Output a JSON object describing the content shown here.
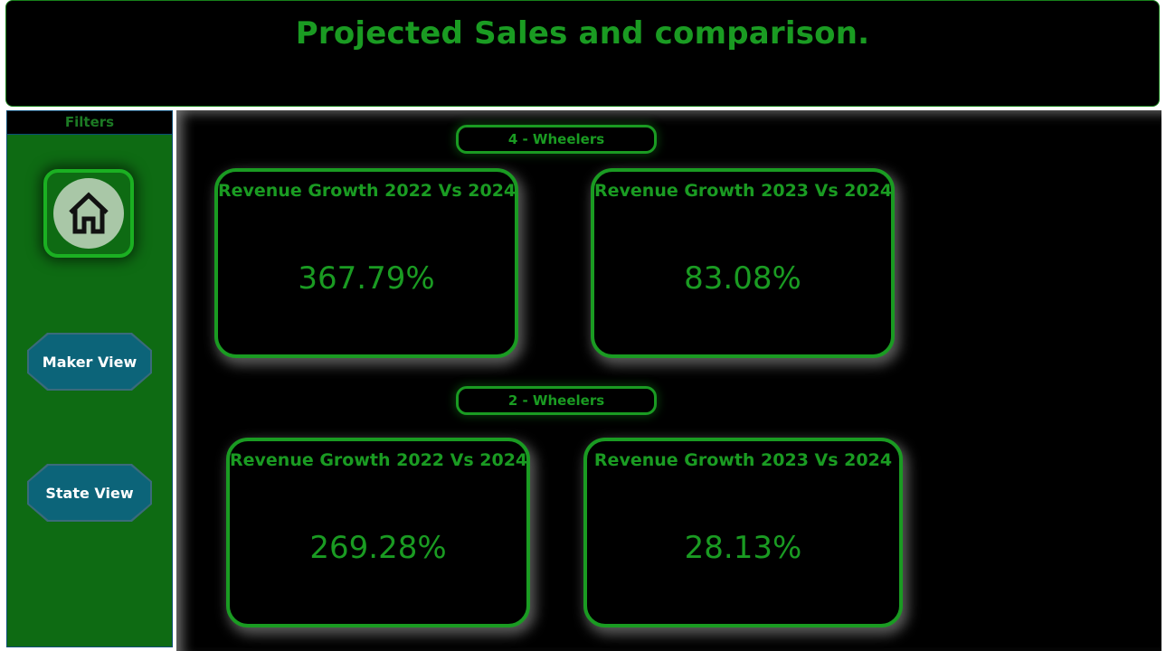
{
  "header": {
    "title": "Projected Sales and comparison."
  },
  "sidebar": {
    "title": "Filters",
    "home_icon": "home-icon",
    "buttons": [
      {
        "label": "Maker View"
      },
      {
        "label": "State View"
      }
    ]
  },
  "sections": [
    {
      "label": "4 - Wheelers",
      "cards": [
        {
          "title": "Revenue Growth 2022 Vs 2024",
          "value": "367.79%"
        },
        {
          "title": "Revenue Growth 2023 Vs 2024",
          "value": "83.08%"
        }
      ]
    },
    {
      "label": "2 - Wheelers",
      "cards": [
        {
          "title": "Revenue Growth 2022 Vs 2024",
          "value": "269.28%"
        },
        {
          "title": "Revenue Growth 2023 Vs 2024",
          "value": "28.13%"
        }
      ]
    }
  ],
  "colors": {
    "accent": "#1a9b22",
    "sidebar_bg": "#0e6b13",
    "nav_button": "#0c6479",
    "background": "#000000"
  }
}
